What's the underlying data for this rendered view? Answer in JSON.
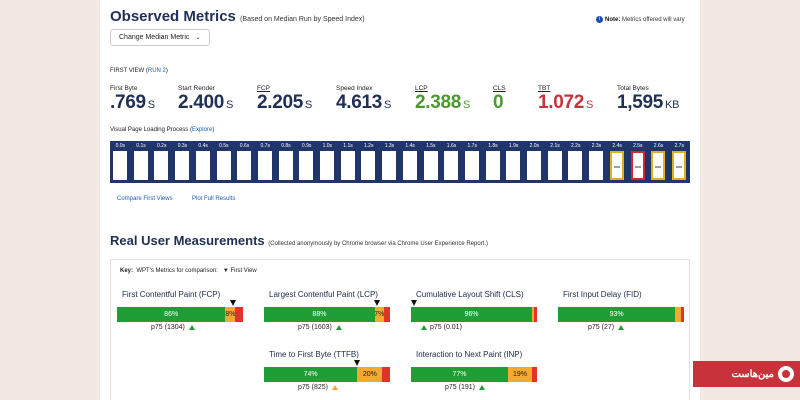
{
  "header": {
    "title": "Observed Metrics",
    "subtitle": "(Based on Median Run by Speed Index)",
    "note_label": "Note:",
    "note_text": "Metrics offered will vary",
    "median_button": "Change Median Metric"
  },
  "first_view": {
    "label": "FIRST VIEW (",
    "run_link": "RUN 2",
    "close": ")"
  },
  "metrics": [
    {
      "label": "First Byte",
      "value": ".769",
      "unit": "S",
      "color": "#1f2f55"
    },
    {
      "label": "Start Render",
      "value": "2.400",
      "unit": "S",
      "color": "#1f2f55"
    },
    {
      "label": "FCP",
      "value": "2.205",
      "unit": "S",
      "color": "#1f2f55"
    },
    {
      "label": "Speed Index",
      "value": "4.613",
      "unit": "S",
      "color": "#1f2f55"
    },
    {
      "label": "LCP",
      "value": "2.388",
      "unit": "S",
      "color": "#4a9a2f"
    },
    {
      "label": "CLS",
      "value": "0",
      "unit": "",
      "color": "#4a9a2f"
    },
    {
      "label": "TBT",
      "value": "1.072",
      "unit": "S",
      "color": "#c8323a"
    },
    {
      "label": "Total Bytes",
      "value": "1,595",
      "unit": "KB",
      "color": "#1f2f55"
    }
  ],
  "visual": {
    "label": "Visual Page Loading Process (",
    "explore": "Explore",
    "close": ")",
    "frames": [
      "0.0s",
      "0.1s",
      "0.2s",
      "0.3s",
      "0.4s",
      "0.5s",
      "0.6s",
      "0.7s",
      "0.8s",
      "0.9s",
      "1.0s",
      "1.1s",
      "1.2s",
      "1.3s",
      "1.4s",
      "1.5s",
      "1.6s",
      "1.7s",
      "1.8s",
      "1.9s",
      "2.0s",
      "2.1s",
      "2.2s",
      "2.3s",
      "2.4s",
      "2.5s",
      "2.6s",
      "2.7s"
    ]
  },
  "links": {
    "compare": "Compare First Views",
    "plot": "Plot Full Results"
  },
  "rum": {
    "title": "Real User Measurements",
    "subtitle": "(Collected anonymously by Chrome browser via Chrome User Experience Report.)",
    "key_label": "Key:",
    "key_text": "WPT's Metrics for comparison:",
    "key_first": "▼ First View"
  },
  "crux": [
    {
      "title": "First Contentful Paint (FCP)",
      "good": 86,
      "ni": 8,
      "poor": 6,
      "good_label": "86%",
      "ni_label": "8%",
      "poor_label": "",
      "p75": "p75 (1304)",
      "marker_pct": 92,
      "p75_color": "green"
    },
    {
      "title": "Largest Contentful Paint (LCP)",
      "good": 88,
      "ni": 7,
      "poor": 5,
      "good_label": "88%",
      "ni_label": "7%",
      "poor_label": "",
      "p75": "p75 (1603)",
      "marker_pct": 90,
      "p75_color": "green"
    },
    {
      "title": "Cumulative Layout Shift (CLS)",
      "good": 96,
      "ni": 2,
      "poor": 2,
      "good_label": "96%",
      "ni_label": "",
      "poor_label": "",
      "p75": "p75 (0.01)",
      "marker_pct": 2,
      "p75_color": "green"
    },
    {
      "title": "First Input Delay (FID)",
      "good": 93,
      "ni": 5,
      "poor": 2,
      "good_label": "93%",
      "ni_label": "",
      "poor_label": "",
      "p75": "p75 (27)",
      "marker_pct": -1,
      "p75_color": "green"
    },
    {
      "title": "Time to First Byte (TTFB)",
      "good": 74,
      "ni": 20,
      "poor": 6,
      "good_label": "74%",
      "ni_label": "20%",
      "poor_label": "",
      "p75": "p75 (825)",
      "marker_pct": 74,
      "p75_color": "orange"
    },
    {
      "title": "Interaction to Next Paint (INP)",
      "good": 77,
      "ni": 19,
      "poor": 4,
      "good_label": "77%",
      "ni_label": "19%",
      "poor_label": "",
      "p75": "p75 (191)",
      "marker_pct": -1,
      "p75_color": "green"
    }
  ],
  "watermark": {
    "text": "مین‌هاست"
  }
}
